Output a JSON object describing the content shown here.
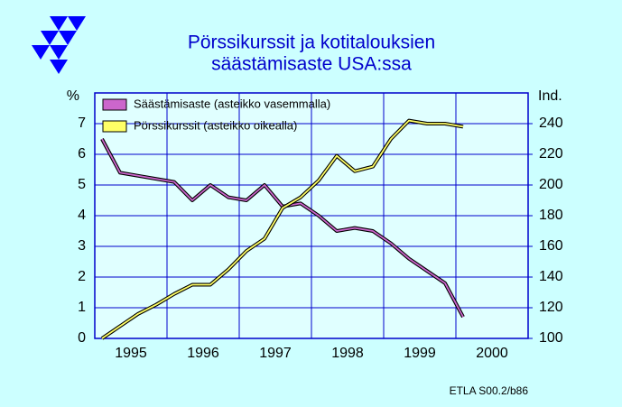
{
  "chart_data": {
    "type": "line",
    "title": [
      "Pörssikurssit  ja  kotitalouksien",
      "säästämisaste  USA:ssa"
    ],
    "y_label": "%",
    "y2_label": "Ind.",
    "footnote": "ETLA S00.2/b86",
    "x": [
      1995.1,
      1995.35,
      1995.6,
      1995.85,
      1996.1,
      1996.35,
      1996.6,
      1996.85,
      1997.1,
      1997.35,
      1997.6,
      1997.85,
      1998.1,
      1998.35,
      1998.6,
      1998.85,
      1999.1,
      1999.35,
      1999.6,
      1999.85,
      2000.1
    ],
    "xlim": [
      1995,
      2001
    ],
    "xticks": [
      {
        "value": 1995.5,
        "label": "1995"
      },
      {
        "value": 1996.5,
        "label": "1996"
      },
      {
        "value": 1997.5,
        "label": "1997"
      },
      {
        "value": 1998.5,
        "label": "1998"
      },
      {
        "value": 1999.5,
        "label": "1999"
      },
      {
        "value": 2000.5,
        "label": "2000"
      }
    ],
    "x_gridlines": [
      1996,
      1997,
      1998,
      1999,
      2000
    ],
    "ylim": [
      0,
      8
    ],
    "yticks": [
      0,
      1,
      2,
      3,
      4,
      5,
      6,
      7
    ],
    "y2lim": [
      100,
      260
    ],
    "y2ticks": [
      100,
      120,
      140,
      160,
      180,
      200,
      220,
      240
    ],
    "grid": true,
    "series": [
      {
        "name": "Säästämisaste (asteikko vasemmalla)",
        "color": "#cc66cc",
        "values": [
          6.5,
          5.4,
          5.3,
          5.2,
          5.1,
          4.5,
          5.0,
          4.6,
          4.5,
          5.0,
          4.3,
          4.4,
          4.0,
          3.5,
          3.6,
          3.5,
          3.1,
          2.6,
          2.2,
          1.8,
          0.7
        ]
      },
      {
        "name": "Pörssikurssit (asteikko oikealla)",
        "color": "#ffff66",
        "axis": "y2",
        "values": [
          100,
          108,
          116,
          122,
          129,
          135,
          135,
          145,
          157,
          165,
          185,
          192,
          203,
          219,
          209,
          212,
          230,
          242,
          240,
          240,
          238
        ]
      }
    ]
  }
}
